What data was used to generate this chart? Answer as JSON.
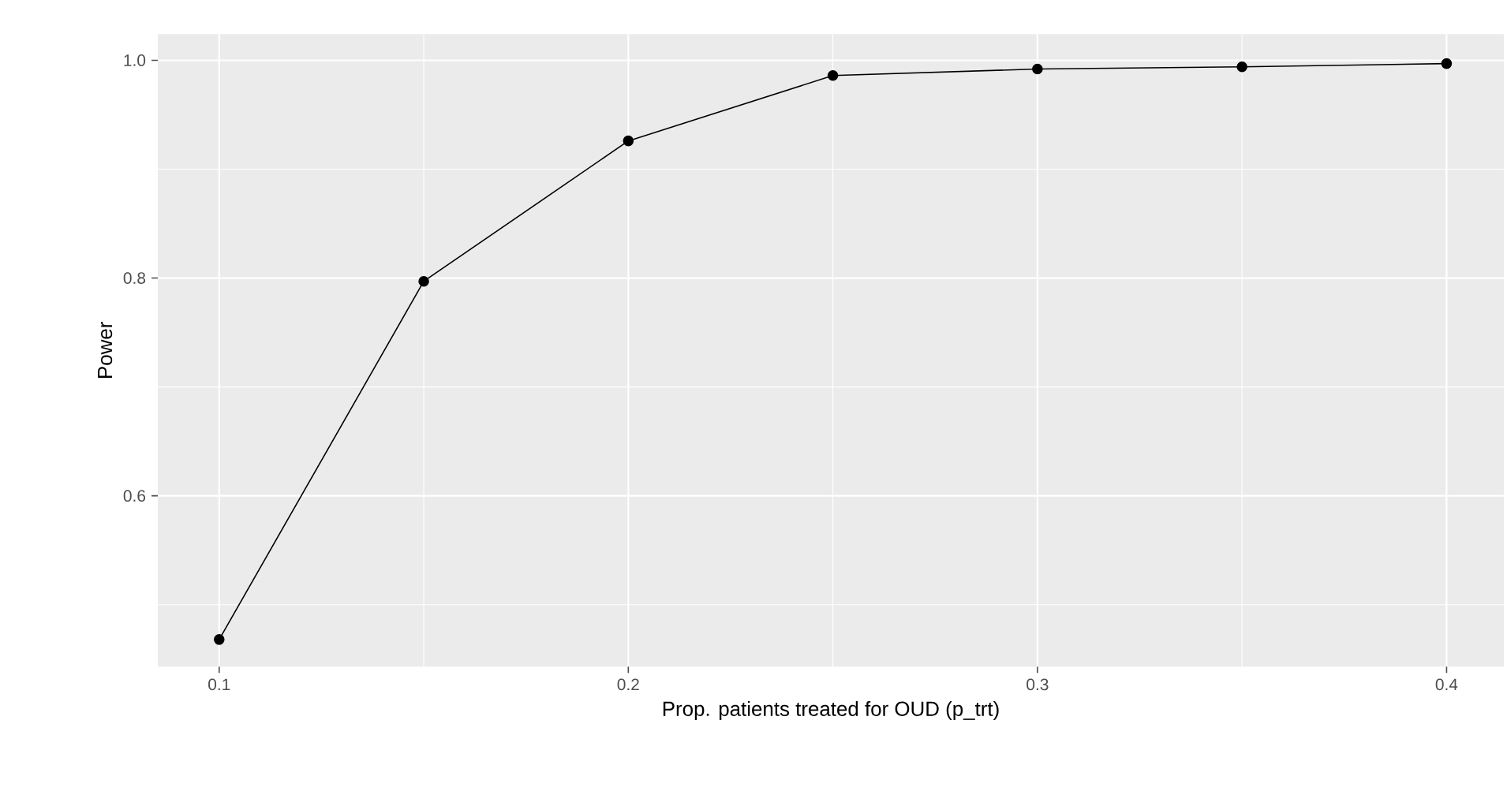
{
  "chart_data": {
    "type": "line",
    "xlabel": "Prop. patients treated for OUD (p_trt)",
    "ylabel": "Power",
    "x": [
      0.1,
      0.15,
      0.2,
      0.25,
      0.3,
      0.35,
      0.4
    ],
    "series": [
      {
        "color": "#000000",
        "values": [
          0.468,
          0.797,
          0.926,
          0.986,
          0.992,
          0.994,
          0.997
        ]
      }
    ],
    "xlim": [
      0.085,
      0.414
    ],
    "ylim": [
      0.443,
      1.024
    ],
    "xticks": [
      0.1,
      0.2,
      0.3,
      0.4
    ],
    "yticks": [
      0.6,
      0.8,
      {
        "value": 1,
        "label": "1.0"
      }
    ],
    "grid": true,
    "marker": "circle",
    "line_style": "solid"
  }
}
